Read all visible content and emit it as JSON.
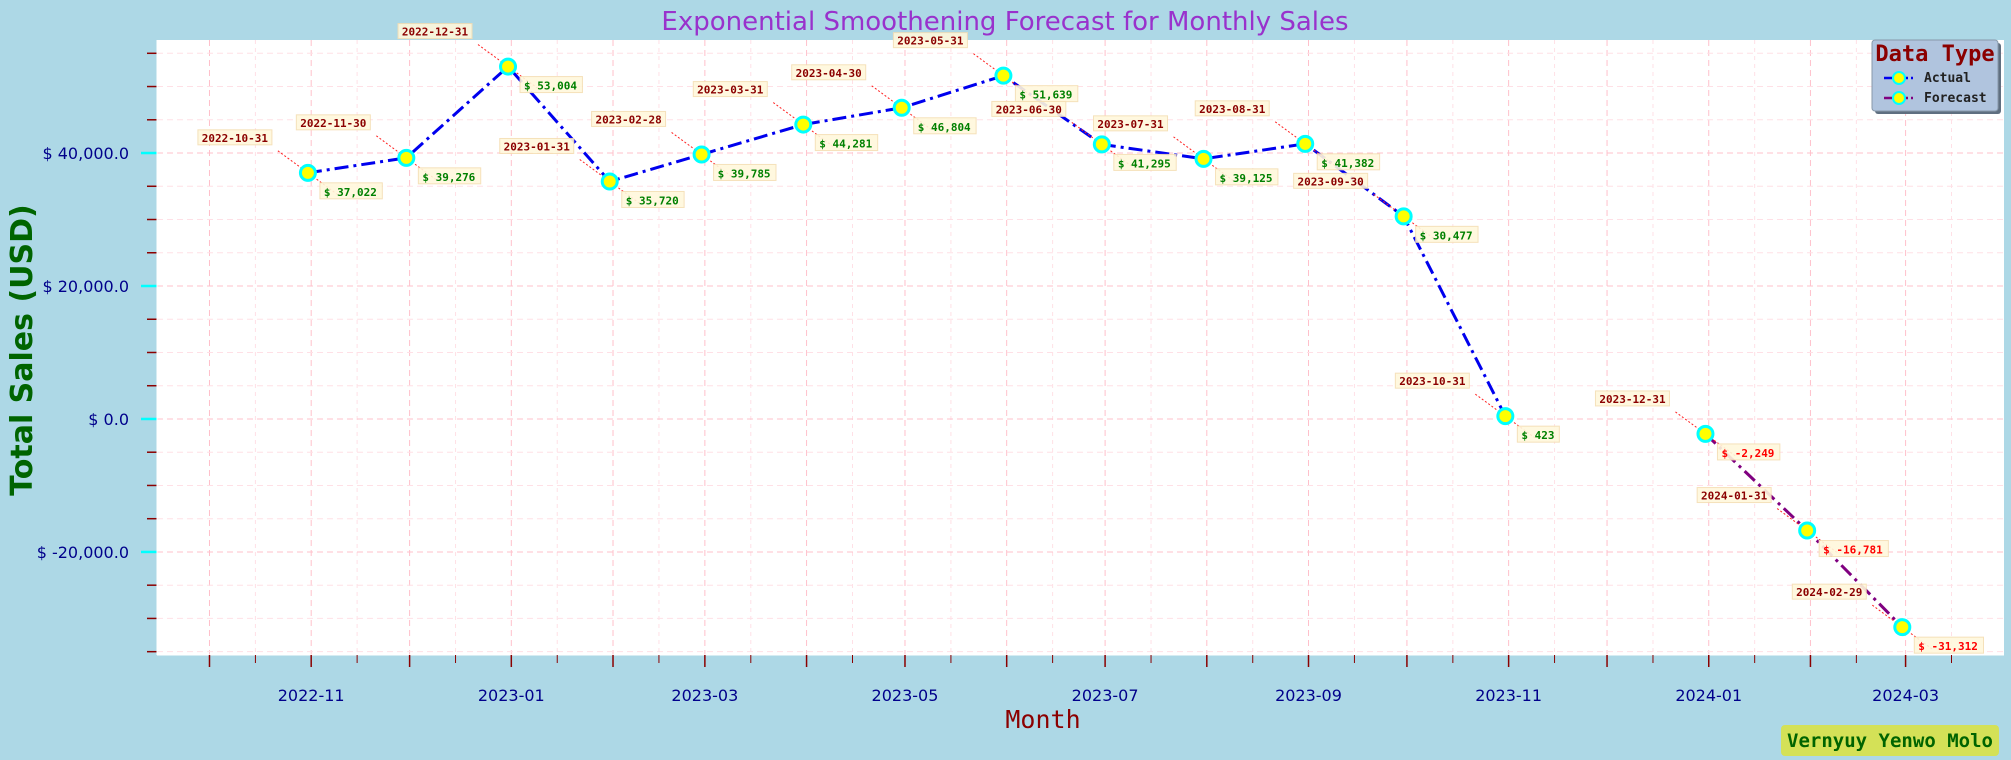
{
  "chart_data": {
    "type": "line",
    "title": "Exponential Smoothening Forecast for Monthly Sales",
    "xlabel": "Month",
    "ylabel": "Total Sales (USD)",
    "x_ticks": [
      "2022-11",
      "2023-01",
      "2023-03",
      "2023-05",
      "2023-07",
      "2023-09",
      "2023-11",
      "2024-01",
      "2024-03"
    ],
    "y_ticks": [
      "$ -20,000.0",
      "$ 0.0",
      "$ 20,000.0",
      "$ 40,000.0"
    ],
    "y_tick_values": [
      -20000,
      0,
      20000,
      40000
    ],
    "xlim": [
      "2022-09-15",
      "2024-03-31"
    ],
    "ylim": [
      -35500,
      57000
    ],
    "grid": true,
    "legend_title": "Data Type",
    "legend_position": "top-right",
    "series": [
      {
        "name": "Actual",
        "color": "#0000ee",
        "x": [
          "2022-10-31",
          "2022-11-30",
          "2022-12-31",
          "2023-01-31",
          "2023-02-28",
          "2023-03-31",
          "2023-04-30",
          "2023-05-31",
          "2023-06-30",
          "2023-07-31",
          "2023-08-31",
          "2023-09-30",
          "2023-10-31"
        ],
        "values": [
          37022,
          39276,
          53004,
          35720,
          39785,
          44281,
          46804,
          51639,
          41295,
          39125,
          41382,
          30477,
          423
        ],
        "labels": [
          "$ 37,022",
          "$ 39,276",
          "$ 53,004",
          "$ 35,720",
          "$ 39,785",
          "$ 44,281",
          "$ 46,804",
          "$ 51,639",
          "$ 41,295",
          "$ 39,125",
          "$ 41,382",
          "$ 30,477",
          "$ 423"
        ]
      },
      {
        "name": "Forecast",
        "color": "#800080",
        "x": [
          "2023-12-31",
          "2024-01-31",
          "2024-02-29"
        ],
        "values": [
          -2249,
          -16781,
          -31312
        ],
        "labels": [
          "$ -2,249",
          "$ -16,781",
          "$ -31,312"
        ]
      }
    ],
    "colors": {
      "background": "#add8e6",
      "plot_bg": "#ffffff",
      "marker_fill": "#ffff00",
      "marker_edge": "#00ffff",
      "positive_label": "#008000",
      "negative_label": "#ff0000",
      "date_label": "#8b0000"
    }
  },
  "footer": {
    "author": "Vernyuy Yenwo Molo"
  }
}
